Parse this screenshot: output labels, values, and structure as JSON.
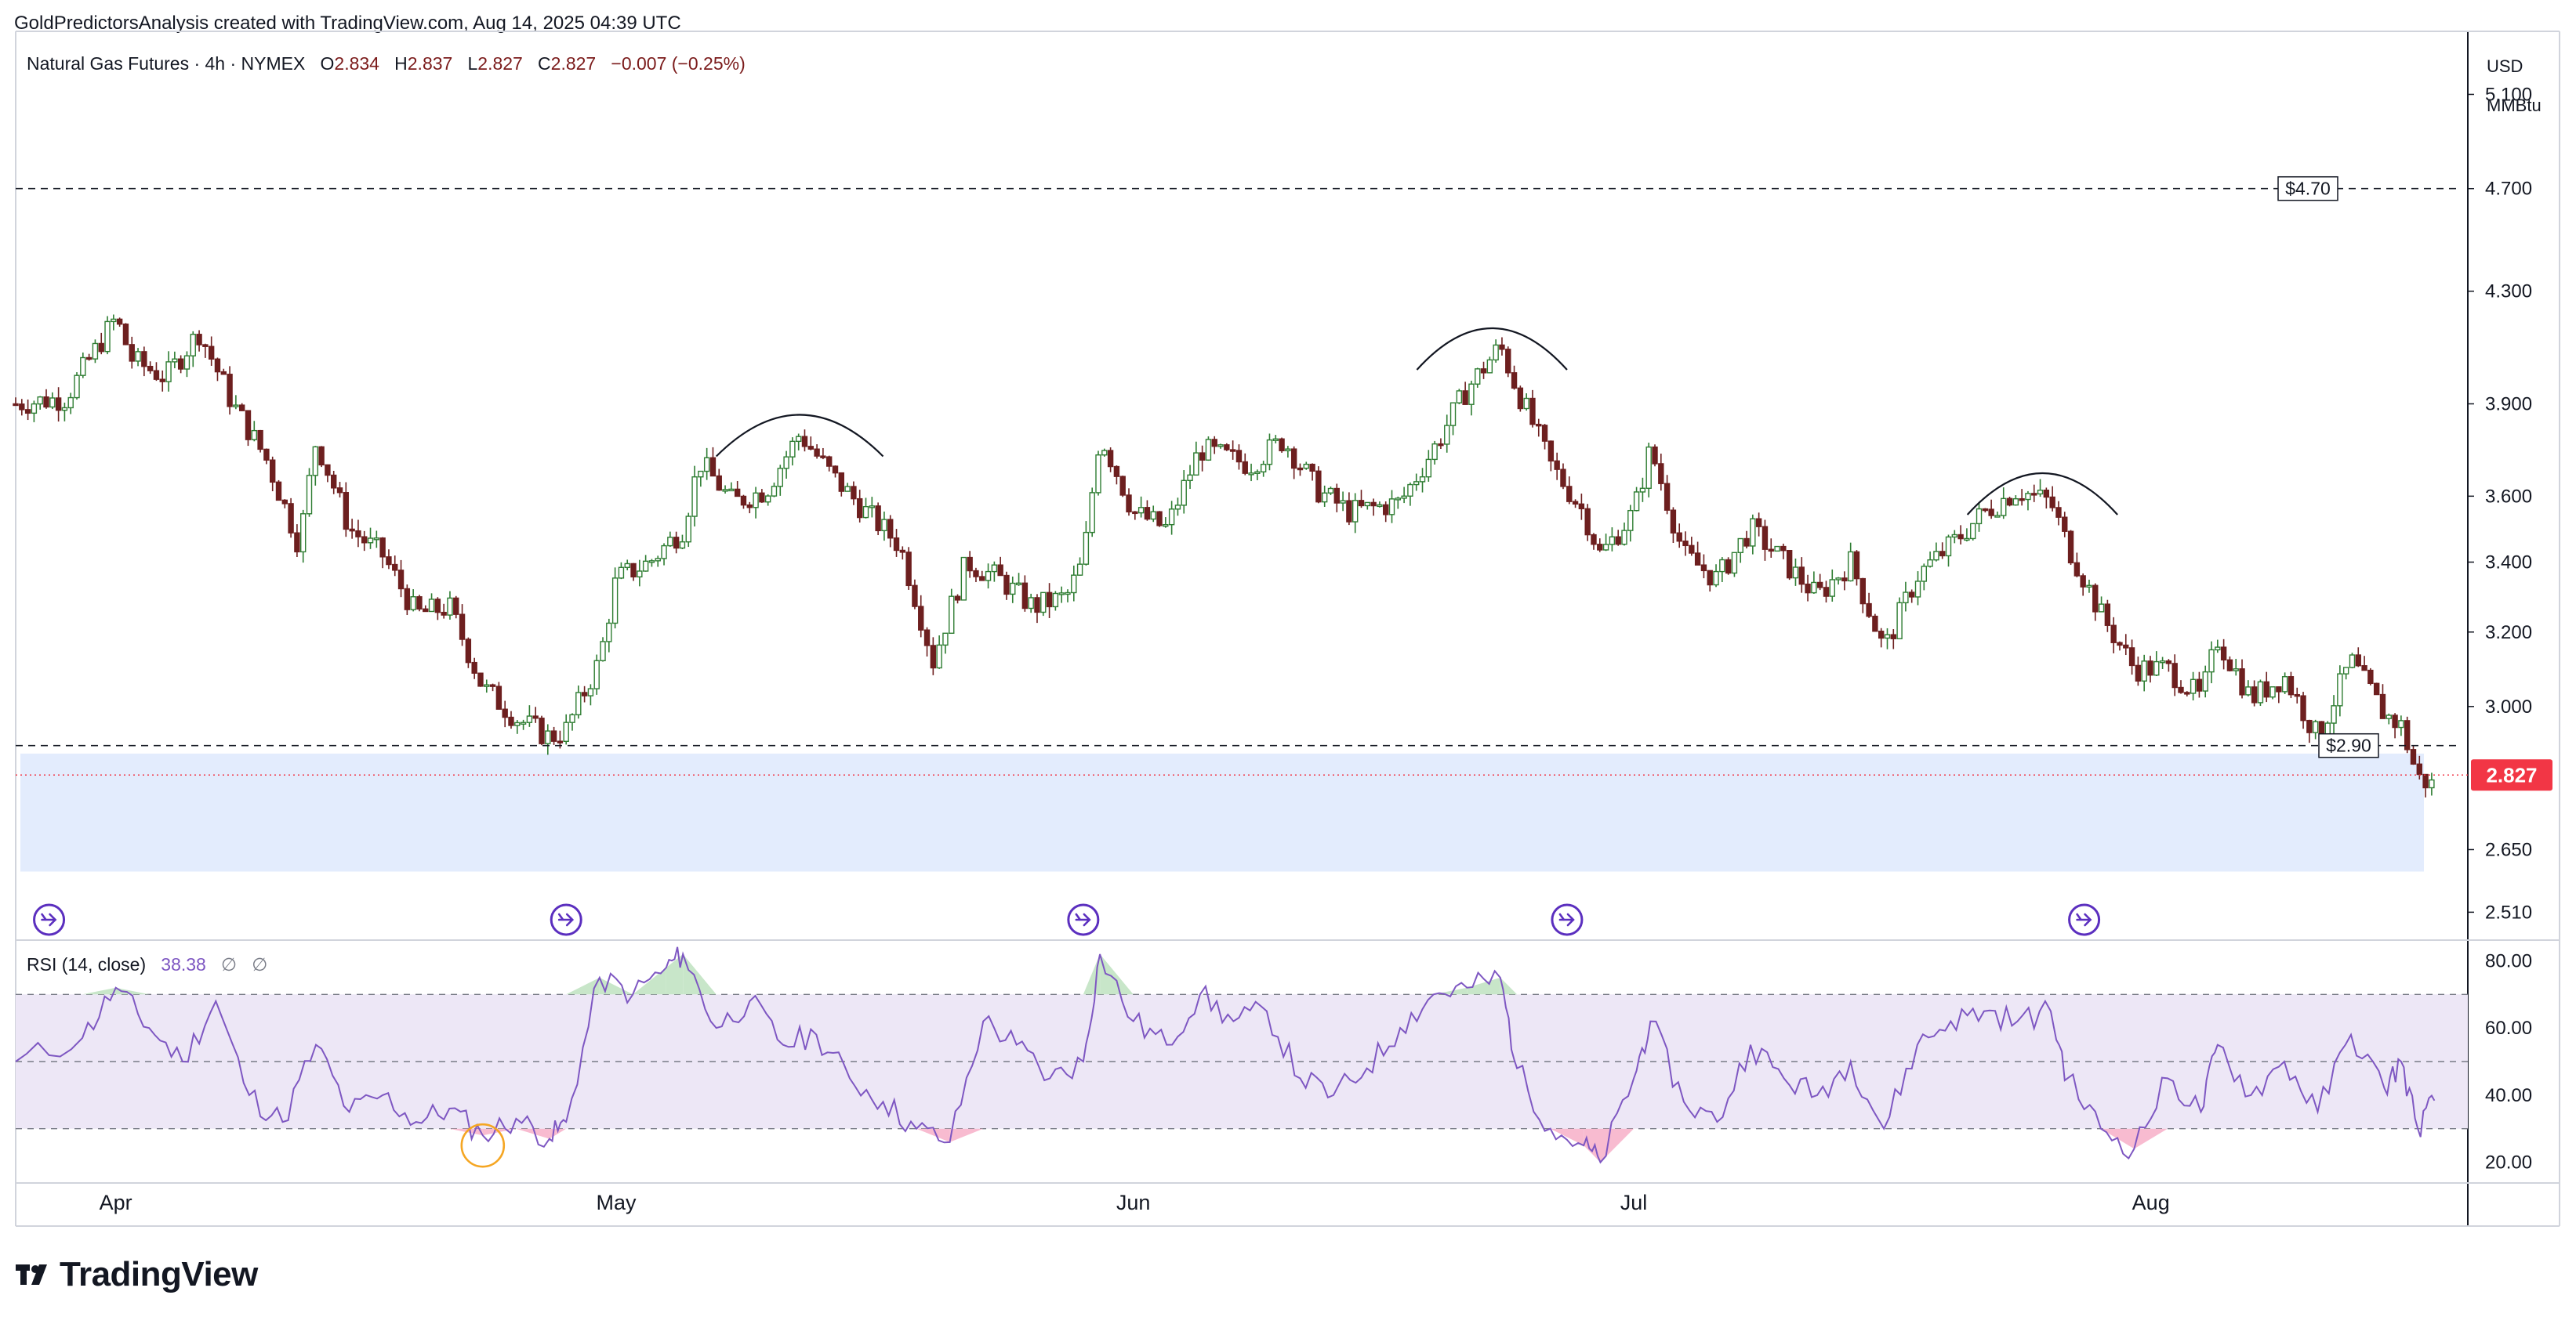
{
  "header": {
    "attribution": "GoldPredictorsAnalysis created with TradingView.com, Aug 14, 2025 04:39 UTC"
  },
  "legend": {
    "symbol": "Natural Gas Futures · 4h · NYMEX",
    "open_key": "O",
    "open": "2.834",
    "high_key": "H",
    "high": "2.837",
    "low_key": "L",
    "low": "2.827",
    "close_key": "C",
    "close": "2.827",
    "change": "−0.007 (−0.25%)"
  },
  "rsi_legend": {
    "name": "RSI (14, close)",
    "value": "38.38",
    "extra1": "∅",
    "extra2": "∅"
  },
  "axis": {
    "currency": "USD",
    "unit": "MMBtu"
  },
  "brand": {
    "name": "TradingView"
  },
  "colors": {
    "up": "#26a69a",
    "down": "#ef5350",
    "candle_up": "#2e7d32",
    "candle_down": "#6d1f1f",
    "rsi_line": "#7e57c2",
    "rsi_band": "#ede7f6",
    "support_zone": "#e3ecfd",
    "last_price": "#f23645",
    "ob_fill": "#c8e6c9",
    "os_fill": "#f8bbd0"
  },
  "chart_data": [
    {
      "type": "candlestick",
      "title": "Natural Gas Futures · 4h · NYMEX",
      "ylabel": "USD MMBtu",
      "y_scale": "log",
      "ylim": [
        2.45,
        5.35
      ],
      "y_ticks": [
        "5.100",
        "4.700",
        "4.300",
        "3.900",
        "3.600",
        "3.400",
        "3.200",
        "3.000",
        "2.650",
        "2.510"
      ],
      "x_ticks": [
        "Apr",
        "May",
        "Jun",
        "Jul",
        "Aug"
      ],
      "x_range": [
        "2025-03-26",
        "2025-08-20"
      ],
      "close_path": [
        {
          "x": "2025-03-26",
          "y": 3.9
        },
        {
          "x": "2025-03-29",
          "y": 3.92
        },
        {
          "x": "2025-04-01",
          "y": 4.2
        },
        {
          "x": "2025-04-02",
          "y": 4.05
        },
        {
          "x": "2025-04-04",
          "y": 3.99
        },
        {
          "x": "2025-04-06",
          "y": 4.15
        },
        {
          "x": "2025-04-08",
          "y": 3.9
        },
        {
          "x": "2025-04-10",
          "y": 3.72
        },
        {
          "x": "2025-04-12",
          "y": 3.45
        },
        {
          "x": "2025-04-13",
          "y": 3.78
        },
        {
          "x": "2025-04-15",
          "y": 3.5
        },
        {
          "x": "2025-04-17",
          "y": 3.42
        },
        {
          "x": "2025-04-19",
          "y": 3.25
        },
        {
          "x": "2025-04-21",
          "y": 3.27
        },
        {
          "x": "2025-04-23",
          "y": 3.05
        },
        {
          "x": "2025-04-25",
          "y": 2.97
        },
        {
          "x": "2025-04-27",
          "y": 2.92
        },
        {
          "x": "2025-04-28",
          "y": 2.94
        },
        {
          "x": "2025-04-30",
          "y": 3.12
        },
        {
          "x": "2025-05-01",
          "y": 3.35
        },
        {
          "x": "2025-05-03",
          "y": 3.4
        },
        {
          "x": "2025-05-05",
          "y": 3.5
        },
        {
          "x": "2025-05-06",
          "y": 3.71
        },
        {
          "x": "2025-05-08",
          "y": 3.58
        },
        {
          "x": "2025-05-10",
          "y": 3.62
        },
        {
          "x": "2025-05-12",
          "y": 3.8
        },
        {
          "x": "2025-05-14",
          "y": 3.66
        },
        {
          "x": "2025-05-16",
          "y": 3.55
        },
        {
          "x": "2025-05-18",
          "y": 3.45
        },
        {
          "x": "2025-05-20",
          "y": 3.12
        },
        {
          "x": "2025-05-22",
          "y": 3.4
        },
        {
          "x": "2025-05-24",
          "y": 3.35
        },
        {
          "x": "2025-05-26",
          "y": 3.27
        },
        {
          "x": "2025-05-28",
          "y": 3.3
        },
        {
          "x": "2025-05-29",
          "y": 3.4
        },
        {
          "x": "2025-05-30",
          "y": 3.8
        },
        {
          "x": "2025-06-01",
          "y": 3.55
        },
        {
          "x": "2025-06-03",
          "y": 3.5
        },
        {
          "x": "2025-06-05",
          "y": 3.75
        },
        {
          "x": "2025-06-08",
          "y": 3.7
        },
        {
          "x": "2025-06-10",
          "y": 3.78
        },
        {
          "x": "2025-06-12",
          "y": 3.62
        },
        {
          "x": "2025-06-14",
          "y": 3.55
        },
        {
          "x": "2025-06-17",
          "y": 3.58
        },
        {
          "x": "2025-06-19",
          "y": 3.75
        },
        {
          "x": "2025-06-21",
          "y": 3.95
        },
        {
          "x": "2025-06-23",
          "y": 4.1
        },
        {
          "x": "2025-06-24",
          "y": 3.95
        },
        {
          "x": "2025-06-26",
          "y": 3.7
        },
        {
          "x": "2025-06-28",
          "y": 3.55
        },
        {
          "x": "2025-06-29",
          "y": 3.42
        },
        {
          "x": "2025-07-01",
          "y": 3.55
        },
        {
          "x": "2025-07-02",
          "y": 3.75
        },
        {
          "x": "2025-07-04",
          "y": 3.42
        },
        {
          "x": "2025-07-06",
          "y": 3.35
        },
        {
          "x": "2025-07-08",
          "y": 3.5
        },
        {
          "x": "2025-07-10",
          "y": 3.4
        },
        {
          "x": "2025-07-12",
          "y": 3.3
        },
        {
          "x": "2025-07-14",
          "y": 3.4
        },
        {
          "x": "2025-07-16",
          "y": 3.15
        },
        {
          "x": "2025-07-18",
          "y": 3.36
        },
        {
          "x": "2025-07-20",
          "y": 3.45
        },
        {
          "x": "2025-07-22",
          "y": 3.55
        },
        {
          "x": "2025-07-24",
          "y": 3.62
        },
        {
          "x": "2025-07-26",
          "y": 3.58
        },
        {
          "x": "2025-07-27",
          "y": 3.45
        },
        {
          "x": "2025-07-29",
          "y": 3.25
        },
        {
          "x": "2025-07-31",
          "y": 3.1
        },
        {
          "x": "2025-08-02",
          "y": 3.1
        },
        {
          "x": "2025-08-04",
          "y": 3.02
        },
        {
          "x": "2025-08-05",
          "y": 3.18
        },
        {
          "x": "2025-08-07",
          "y": 3.02
        },
        {
          "x": "2025-08-09",
          "y": 3.08
        },
        {
          "x": "2025-08-11",
          "y": 2.92
        },
        {
          "x": "2025-08-13",
          "y": 3.12
        },
        {
          "x": "2025-08-15",
          "y": 2.98
        },
        {
          "x": "2025-08-16",
          "y": 2.95
        },
        {
          "x": "2025-08-17",
          "y": 2.82
        },
        {
          "x": "2025-08-18",
          "y": 2.8
        },
        {
          "x": "2025-08-18",
          "y": 2.827
        }
      ],
      "annotations": [
        {
          "type": "hline",
          "price": 4.7,
          "label": "$4.70",
          "style": "dashed"
        },
        {
          "type": "hline",
          "price": 2.9,
          "label": "$2.90",
          "style": "dashed"
        },
        {
          "type": "last_price",
          "price": 2.827,
          "label": "2.827"
        },
        {
          "type": "zone",
          "from": 2.6,
          "to": 2.88
        },
        {
          "type": "arc",
          "from": "2025-05-07",
          "to": "2025-05-17",
          "peak": 3.85
        },
        {
          "type": "arc",
          "from": "2025-06-18",
          "to": "2025-06-27",
          "peak": 4.15
        },
        {
          "type": "arc",
          "from": "2025-07-21",
          "to": "2025-07-30",
          "peak": 3.66
        },
        {
          "type": "marker",
          "at": "2025-03-28"
        },
        {
          "type": "marker",
          "at": "2025-04-28"
        },
        {
          "type": "marker",
          "at": "2025-05-29"
        },
        {
          "type": "marker",
          "at": "2025-06-27"
        },
        {
          "type": "marker",
          "at": "2025-07-28"
        }
      ]
    },
    {
      "type": "line",
      "title": "RSI (14, close)",
      "ylim": [
        15,
        85
      ],
      "y_ticks": [
        "80.00",
        "60.00",
        "40.00",
        "20.00"
      ],
      "bands": [
        30,
        50,
        70
      ],
      "series": [
        {
          "name": "RSI (14, close)",
          "points": [
            {
              "x": "2025-03-26",
              "y": 50
            },
            {
              "x": "2025-03-30",
              "y": 57
            },
            {
              "x": "2025-04-01",
              "y": 72
            },
            {
              "x": "2025-04-03",
              "y": 60
            },
            {
              "x": "2025-04-05",
              "y": 50
            },
            {
              "x": "2025-04-07",
              "y": 68
            },
            {
              "x": "2025-04-09",
              "y": 40
            },
            {
              "x": "2025-04-11",
              "y": 32
            },
            {
              "x": "2025-04-13",
              "y": 55
            },
            {
              "x": "2025-04-15",
              "y": 35
            },
            {
              "x": "2025-04-17",
              "y": 40
            },
            {
              "x": "2025-04-19",
              "y": 32
            },
            {
              "x": "2025-04-21",
              "y": 36
            },
            {
              "x": "2025-04-23",
              "y": 28
            },
            {
              "x": "2025-04-25",
              "y": 33
            },
            {
              "x": "2025-04-27",
              "y": 27
            },
            {
              "x": "2025-04-28",
              "y": 32
            },
            {
              "x": "2025-04-30",
              "y": 75
            },
            {
              "x": "2025-05-02",
              "y": 70
            },
            {
              "x": "2025-05-04",
              "y": 78
            },
            {
              "x": "2025-05-05",
              "y": 82
            },
            {
              "x": "2025-05-07",
              "y": 60
            },
            {
              "x": "2025-05-09",
              "y": 68
            },
            {
              "x": "2025-05-11",
              "y": 55
            },
            {
              "x": "2025-05-13",
              "y": 58
            },
            {
              "x": "2025-05-15",
              "y": 45
            },
            {
              "x": "2025-05-17",
              "y": 38
            },
            {
              "x": "2025-05-19",
              "y": 30
            },
            {
              "x": "2025-05-21",
              "y": 26
            },
            {
              "x": "2025-05-23",
              "y": 62
            },
            {
              "x": "2025-05-25",
              "y": 55
            },
            {
              "x": "2025-05-27",
              "y": 45
            },
            {
              "x": "2025-05-29",
              "y": 50
            },
            {
              "x": "2025-05-30",
              "y": 82
            },
            {
              "x": "2025-06-01",
              "y": 62
            },
            {
              "x": "2025-06-03",
              "y": 55
            },
            {
              "x": "2025-06-05",
              "y": 70
            },
            {
              "x": "2025-06-07",
              "y": 62
            },
            {
              "x": "2025-06-09",
              "y": 65
            },
            {
              "x": "2025-06-11",
              "y": 45
            },
            {
              "x": "2025-06-13",
              "y": 40
            },
            {
              "x": "2025-06-15",
              "y": 48
            },
            {
              "x": "2025-06-17",
              "y": 60
            },
            {
              "x": "2025-06-19",
              "y": 70
            },
            {
              "x": "2025-06-21",
              "y": 72
            },
            {
              "x": "2025-06-23",
              "y": 75
            },
            {
              "x": "2025-06-24",
              "y": 48
            },
            {
              "x": "2025-06-26",
              "y": 30
            },
            {
              "x": "2025-06-28",
              "y": 25
            },
            {
              "x": "2025-06-29",
              "y": 20
            },
            {
              "x": "2025-07-01",
              "y": 45
            },
            {
              "x": "2025-07-02",
              "y": 62
            },
            {
              "x": "2025-07-04",
              "y": 38
            },
            {
              "x": "2025-07-06",
              "y": 32
            },
            {
              "x": "2025-07-08",
              "y": 55
            },
            {
              "x": "2025-07-10",
              "y": 45
            },
            {
              "x": "2025-07-12",
              "y": 40
            },
            {
              "x": "2025-07-14",
              "y": 50
            },
            {
              "x": "2025-07-16",
              "y": 30
            },
            {
              "x": "2025-07-18",
              "y": 55
            },
            {
              "x": "2025-07-20",
              "y": 62
            },
            {
              "x": "2025-07-22",
              "y": 65
            },
            {
              "x": "2025-07-24",
              "y": 62
            },
            {
              "x": "2025-07-26",
              "y": 65
            },
            {
              "x": "2025-07-27",
              "y": 45
            },
            {
              "x": "2025-07-29",
              "y": 30
            },
            {
              "x": "2025-07-31",
              "y": 24
            },
            {
              "x": "2025-08-02",
              "y": 45
            },
            {
              "x": "2025-08-04",
              "y": 35
            },
            {
              "x": "2025-08-05",
              "y": 55
            },
            {
              "x": "2025-08-07",
              "y": 40
            },
            {
              "x": "2025-08-09",
              "y": 50
            },
            {
              "x": "2025-08-11",
              "y": 35
            },
            {
              "x": "2025-08-13",
              "y": 58
            },
            {
              "x": "2025-08-15",
              "y": 42
            },
            {
              "x": "2025-08-16",
              "y": 50
            },
            {
              "x": "2025-08-17",
              "y": 30
            },
            {
              "x": "2025-08-18",
              "y": 38.38
            }
          ]
        }
      ],
      "annotations": [
        {
          "type": "circle",
          "at": "2025-04-23",
          "y": 25
        }
      ]
    }
  ]
}
